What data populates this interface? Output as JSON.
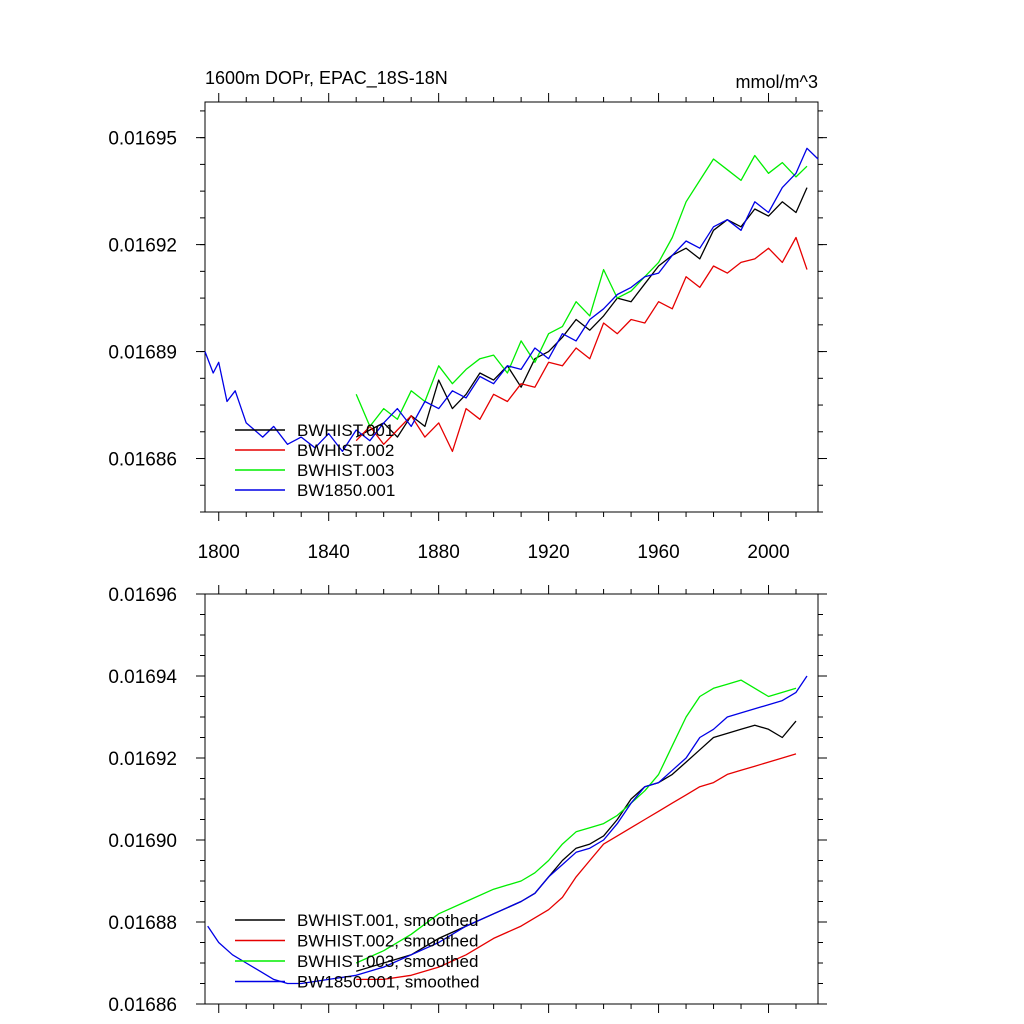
{
  "chart_data": [
    {
      "type": "line",
      "title": "1600m DOPr, EPAC_18S-18N",
      "units": "mmol/m^3",
      "xlim": [
        1795,
        2018
      ],
      "ylim": [
        0.016845,
        0.01696
      ],
      "xticks": [
        1800,
        1840,
        1880,
        1920,
        1960,
        2000
      ],
      "xtick_labels": [
        "1800",
        "1840",
        "1880",
        "1920",
        "1960",
        "2000"
      ],
      "yticks": [
        0.01686,
        0.01689,
        0.01692,
        0.01695
      ],
      "ytick_labels": [
        "0.01686",
        "0.01689",
        "0.01692",
        "0.01695"
      ],
      "legend_position": "bottom-left",
      "series": [
        {
          "name": "BWHIST.001",
          "color": "#000000",
          "x": [
            1850,
            1855,
            1860,
            1865,
            1870,
            1875,
            1880,
            1885,
            1890,
            1895,
            1900,
            1905,
            1910,
            1915,
            1920,
            1925,
            1930,
            1935,
            1940,
            1945,
            1950,
            1955,
            1960,
            1965,
            1970,
            1975,
            1980,
            1985,
            1990,
            1995,
            2000,
            2005,
            2010,
            2014
          ],
          "y": [
            0.016866,
            0.016868,
            0.01687,
            0.016866,
            0.016872,
            0.016869,
            0.016882,
            0.016874,
            0.016878,
            0.016884,
            0.016882,
            0.016886,
            0.01688,
            0.016888,
            0.01689,
            0.016894,
            0.016899,
            0.016896,
            0.0169,
            0.016905,
            0.016904,
            0.016909,
            0.016914,
            0.016917,
            0.016919,
            0.016916,
            0.016924,
            0.016927,
            0.016925,
            0.01693,
            0.016928,
            0.016932,
            0.016929,
            0.016936
          ]
        },
        {
          "name": "BWHIST.002",
          "color": "#e60000",
          "x": [
            1850,
            1855,
            1860,
            1865,
            1870,
            1875,
            1880,
            1885,
            1890,
            1895,
            1900,
            1905,
            1910,
            1915,
            1920,
            1925,
            1930,
            1935,
            1940,
            1945,
            1950,
            1955,
            1960,
            1965,
            1970,
            1975,
            1980,
            1985,
            1990,
            1995,
            2000,
            2005,
            2010,
            2014
          ],
          "y": [
            0.016865,
            0.016869,
            0.016864,
            0.016868,
            0.016872,
            0.016866,
            0.01687,
            0.016862,
            0.016874,
            0.016871,
            0.016878,
            0.016876,
            0.016881,
            0.01688,
            0.016887,
            0.016886,
            0.016891,
            0.016888,
            0.016898,
            0.016895,
            0.016899,
            0.016898,
            0.016904,
            0.016902,
            0.016911,
            0.016908,
            0.016914,
            0.016912,
            0.016915,
            0.016916,
            0.016919,
            0.016915,
            0.016922,
            0.016913
          ]
        },
        {
          "name": "BWHIST.003",
          "color": "#00ee00",
          "x": [
            1850,
            1855,
            1860,
            1865,
            1870,
            1875,
            1880,
            1885,
            1890,
            1895,
            1900,
            1905,
            1910,
            1915,
            1920,
            1925,
            1930,
            1935,
            1940,
            1945,
            1950,
            1955,
            1960,
            1965,
            1970,
            1975,
            1980,
            1985,
            1990,
            1995,
            2000,
            2005,
            2010,
            2014
          ],
          "y": [
            0.016878,
            0.016869,
            0.016874,
            0.016871,
            0.016879,
            0.016876,
            0.016886,
            0.016881,
            0.016885,
            0.016888,
            0.016889,
            0.016884,
            0.016893,
            0.016887,
            0.016895,
            0.016897,
            0.016904,
            0.0169,
            0.016913,
            0.016905,
            0.016907,
            0.016911,
            0.016915,
            0.016922,
            0.016932,
            0.016938,
            0.016944,
            0.016941,
            0.016938,
            0.016945,
            0.01694,
            0.016943,
            0.016939,
            0.016942
          ]
        },
        {
          "name": "BW1850.001",
          "color": "#0000e6",
          "x": [
            1795,
            1798,
            1800,
            1803,
            1806,
            1810,
            1813,
            1816,
            1820,
            1825,
            1830,
            1835,
            1840,
            1845,
            1850,
            1855,
            1860,
            1865,
            1870,
            1875,
            1880,
            1885,
            1890,
            1895,
            1900,
            1905,
            1910,
            1915,
            1920,
            1925,
            1930,
            1935,
            1940,
            1945,
            1950,
            1955,
            1960,
            1965,
            1970,
            1975,
            1980,
            1985,
            1990,
            1995,
            2000,
            2005,
            2010,
            2014,
            2018
          ],
          "y": [
            0.01689,
            0.016884,
            0.016887,
            0.016876,
            0.016879,
            0.01687,
            0.016868,
            0.016866,
            0.016869,
            0.016864,
            0.016866,
            0.016863,
            0.016867,
            0.016862,
            0.016868,
            0.016865,
            0.01687,
            0.016874,
            0.016869,
            0.016876,
            0.016874,
            0.016879,
            0.016877,
            0.016883,
            0.016881,
            0.016886,
            0.016885,
            0.016891,
            0.016888,
            0.016895,
            0.016893,
            0.016899,
            0.016902,
            0.016906,
            0.016908,
            0.016911,
            0.016912,
            0.016917,
            0.016921,
            0.016919,
            0.016925,
            0.016927,
            0.016924,
            0.016932,
            0.016929,
            0.016936,
            0.01694,
            0.016947,
            0.016944
          ]
        }
      ]
    },
    {
      "type": "line",
      "title": "",
      "xlim": [
        1795,
        2018
      ],
      "ylim": [
        0.01686,
        0.01696
      ],
      "xticks": [
        1800,
        1840,
        1880,
        1920,
        1960,
        2000
      ],
      "yticks": [
        0.01686,
        0.01688,
        0.0169,
        0.01692,
        0.01694,
        0.01696
      ],
      "ytick_labels": [
        "0.01686",
        "0.01688",
        "0.01690",
        "0.01692",
        "0.01694",
        "0.01696"
      ],
      "legend_position": "bottom-left",
      "series": [
        {
          "name": "BWHIST.001, smoothed",
          "color": "#000000",
          "x": [
            1850,
            1860,
            1870,
            1880,
            1890,
            1900,
            1910,
            1915,
            1920,
            1925,
            1930,
            1935,
            1940,
            1945,
            1950,
            1955,
            1960,
            1965,
            1970,
            1975,
            1980,
            1985,
            1990,
            1995,
            2000,
            2005,
            2010
          ],
          "y": [
            0.016868,
            0.01687,
            0.016872,
            0.016876,
            0.016879,
            0.016882,
            0.016885,
            0.016887,
            0.016891,
            0.016895,
            0.016898,
            0.016899,
            0.016901,
            0.016905,
            0.01691,
            0.016913,
            0.016914,
            0.016916,
            0.016919,
            0.016922,
            0.016925,
            0.016926,
            0.016927,
            0.016928,
            0.016927,
            0.016925,
            0.016929
          ]
        },
        {
          "name": "BWHIST.002, smoothed",
          "color": "#e60000",
          "x": [
            1850,
            1860,
            1870,
            1880,
            1890,
            1900,
            1910,
            1920,
            1925,
            1930,
            1935,
            1940,
            1945,
            1950,
            1955,
            1960,
            1965,
            1970,
            1975,
            1980,
            1985,
            1990,
            1995,
            2000,
            2005,
            2010
          ],
          "y": [
            0.016866,
            0.016866,
            0.016867,
            0.016869,
            0.016872,
            0.016876,
            0.016879,
            0.016883,
            0.016886,
            0.016891,
            0.016895,
            0.016899,
            0.016901,
            0.016903,
            0.016905,
            0.016907,
            0.016909,
            0.016911,
            0.016913,
            0.016914,
            0.016916,
            0.016917,
            0.016918,
            0.016919,
            0.01692,
            0.016921
          ]
        },
        {
          "name": "BWHIST.003, smoothed",
          "color": "#00ee00",
          "x": [
            1850,
            1860,
            1870,
            1880,
            1890,
            1900,
            1910,
            1915,
            1920,
            1925,
            1930,
            1935,
            1940,
            1945,
            1950,
            1955,
            1960,
            1965,
            1970,
            1975,
            1980,
            1985,
            1990,
            1995,
            2000,
            2005,
            2010
          ],
          "y": [
            0.01687,
            0.016873,
            0.016877,
            0.016882,
            0.016885,
            0.016888,
            0.01689,
            0.016892,
            0.016895,
            0.016899,
            0.016902,
            0.016903,
            0.016904,
            0.016906,
            0.016909,
            0.016912,
            0.016916,
            0.016923,
            0.01693,
            0.016935,
            0.016937,
            0.016938,
            0.016939,
            0.016937,
            0.016935,
            0.016936,
            0.016937
          ]
        },
        {
          "name": "BW1850.001, smoothed",
          "color": "#0000e6",
          "x": [
            1796,
            1800,
            1805,
            1810,
            1815,
            1820,
            1825,
            1830,
            1840,
            1850,
            1860,
            1870,
            1880,
            1890,
            1900,
            1910,
            1915,
            1920,
            1925,
            1930,
            1935,
            1940,
            1945,
            1950,
            1955,
            1960,
            1965,
            1970,
            1975,
            1980,
            1985,
            1990,
            1995,
            2000,
            2005,
            2010,
            2014
          ],
          "y": [
            0.016879,
            0.016875,
            0.016872,
            0.01687,
            0.016868,
            0.016866,
            0.016865,
            0.016865,
            0.016866,
            0.016867,
            0.016869,
            0.016872,
            0.016875,
            0.016879,
            0.016882,
            0.016885,
            0.016887,
            0.016891,
            0.016894,
            0.016897,
            0.016898,
            0.0169,
            0.016904,
            0.016909,
            0.016913,
            0.016914,
            0.016917,
            0.01692,
            0.016925,
            0.016927,
            0.01693,
            0.016931,
            0.016932,
            0.016933,
            0.016934,
            0.016936,
            0.01694
          ]
        }
      ]
    }
  ]
}
